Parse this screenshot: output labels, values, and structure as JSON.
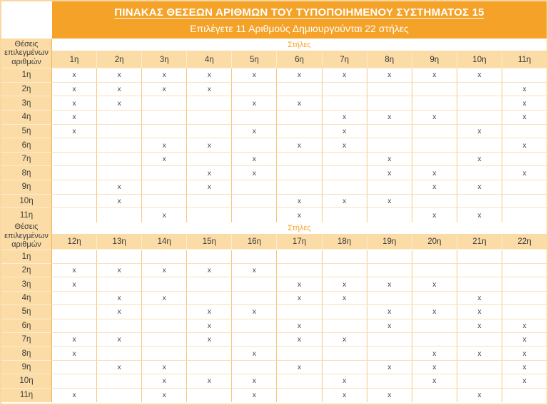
{
  "title": "ΠΙΝΑΚΑΣ ΘΕΣΕΩΝ ΑΡΙΘΜΩΝ ΤΟΥ ΤΥΠΟΠΟΙΗΜΕΝΟΥ ΣΥΣΤΗΜΑΤΟΣ 15",
  "subtitle": "Επιλέγετε 11 Αριθμούς Δημιουργούνται 22 στήλες",
  "row_header_label": "Θέσεις επιλεγμένων αριθμών",
  "columns_group_label": "Στήλες",
  "mark": "x",
  "colors": {
    "orange_bar": "#f5a228",
    "light_orange_cell": "#fcdca6",
    "cell_border_orange": "#f7c77f",
    "title_text": "#ffffff",
    "body_text": "#3c3c3b"
  },
  "chart_data": {
    "type": "table",
    "title": "ΠΙΝΑΚΑΣ ΘΕΣΕΩΝ ΑΡΙΘΜΩΝ ΤΟΥ ΤΥΠΟΠΟΙΗΜΕΝΟΥ ΣΥΣΤΗΜΑΤΟΣ 15",
    "row_labels": [
      "1η",
      "2η",
      "3η",
      "4η",
      "5η",
      "6η",
      "7η",
      "8η",
      "9η",
      "10η",
      "11η"
    ],
    "sections": [
      {
        "column_headers": [
          "1η",
          "2η",
          "3η",
          "4η",
          "5η",
          "6η",
          "7η",
          "8η",
          "9η",
          "10η",
          "11η"
        ],
        "rows": [
          {
            "label": "1η",
            "cells": [
              1,
              1,
              1,
              1,
              1,
              1,
              1,
              1,
              1,
              1,
              0
            ]
          },
          {
            "label": "2η",
            "cells": [
              1,
              1,
              1,
              1,
              0,
              0,
              0,
              0,
              0,
              0,
              1
            ]
          },
          {
            "label": "3η",
            "cells": [
              1,
              1,
              0,
              0,
              1,
              1,
              0,
              0,
              0,
              0,
              1
            ]
          },
          {
            "label": "4η",
            "cells": [
              1,
              0,
              0,
              0,
              0,
              0,
              1,
              1,
              1,
              0,
              1
            ]
          },
          {
            "label": "5η",
            "cells": [
              1,
              0,
              0,
              0,
              1,
              0,
              1,
              0,
              0,
              1,
              0
            ]
          },
          {
            "label": "6η",
            "cells": [
              0,
              0,
              1,
              1,
              0,
              1,
              1,
              0,
              0,
              0,
              1
            ]
          },
          {
            "label": "7η",
            "cells": [
              0,
              0,
              1,
              0,
              1,
              0,
              0,
              1,
              0,
              1,
              0
            ]
          },
          {
            "label": "8η",
            "cells": [
              0,
              0,
              0,
              1,
              1,
              0,
              0,
              1,
              1,
              0,
              1
            ]
          },
          {
            "label": "9η",
            "cells": [
              0,
              1,
              0,
              1,
              0,
              0,
              0,
              0,
              1,
              1,
              0
            ]
          },
          {
            "label": "10η",
            "cells": [
              0,
              1,
              0,
              0,
              0,
              1,
              1,
              1,
              0,
              0,
              0
            ]
          },
          {
            "label": "11η",
            "cells": [
              0,
              0,
              1,
              0,
              0,
              1,
              0,
              0,
              1,
              1,
              0
            ]
          }
        ]
      },
      {
        "column_headers": [
          "12η",
          "13η",
          "14η",
          "15η",
          "16η",
          "17η",
          "18η",
          "19η",
          "20η",
          "21η",
          "22η"
        ],
        "rows": [
          {
            "label": "1η",
            "cells": [
              0,
              0,
              0,
              0,
              0,
              0,
              0,
              0,
              0,
              0,
              0
            ]
          },
          {
            "label": "2η",
            "cells": [
              1,
              1,
              1,
              1,
              1,
              0,
              0,
              0,
              0,
              0,
              0
            ]
          },
          {
            "label": "3η",
            "cells": [
              1,
              0,
              0,
              0,
              0,
              1,
              1,
              1,
              1,
              0,
              0
            ]
          },
          {
            "label": "4η",
            "cells": [
              0,
              1,
              1,
              0,
              0,
              1,
              1,
              0,
              0,
              1,
              0
            ]
          },
          {
            "label": "5η",
            "cells": [
              0,
              1,
              0,
              1,
              1,
              0,
              0,
              1,
              1,
              1,
              0
            ]
          },
          {
            "label": "6η",
            "cells": [
              0,
              0,
              0,
              1,
              0,
              1,
              0,
              1,
              0,
              1,
              1
            ]
          },
          {
            "label": "7η",
            "cells": [
              1,
              1,
              0,
              1,
              0,
              1,
              1,
              0,
              0,
              0,
              1
            ]
          },
          {
            "label": "8η",
            "cells": [
              1,
              0,
              0,
              0,
              1,
              0,
              0,
              0,
              1,
              1,
              1
            ]
          },
          {
            "label": "9η",
            "cells": [
              0,
              1,
              1,
              0,
              0,
              1,
              0,
              1,
              1,
              0,
              1
            ]
          },
          {
            "label": "10η",
            "cells": [
              0,
              0,
              1,
              1,
              1,
              0,
              1,
              0,
              1,
              0,
              1
            ]
          },
          {
            "label": "11η",
            "cells": [
              1,
              0,
              1,
              0,
              1,
              0,
              1,
              1,
              0,
              1,
              0
            ]
          }
        ]
      }
    ]
  }
}
